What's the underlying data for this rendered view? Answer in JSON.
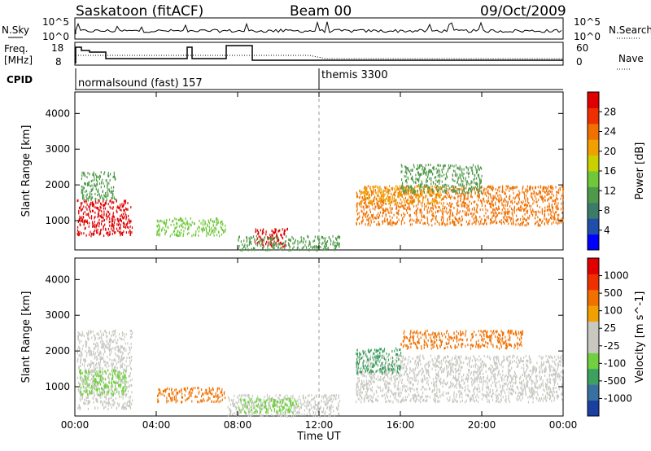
{
  "header": {
    "station": "Saskatoon (fitACF)",
    "beam": "Beam 00",
    "date": "09/Oct/2009"
  },
  "top_panel": {
    "left_label": "N.Sky",
    "left_ticks": [
      "10^5",
      "10^0"
    ],
    "right_ticks": [
      "10^5",
      "10^0"
    ],
    "right_label": "N.Search"
  },
  "freq_panel": {
    "left_label_1": "Freq.",
    "left_label_2": "[MHz]",
    "left_ticks": [
      "18",
      "8"
    ],
    "right_ticks": [
      "60",
      "0"
    ],
    "right_label": "Nave"
  },
  "cpid": {
    "label": "CPID",
    "programs": [
      {
        "name": "normalsound (fast) 157",
        "start_hour": 0
      },
      {
        "name": "themis 3300",
        "start_hour": 12
      }
    ]
  },
  "chart_data": [
    {
      "type": "heatmap",
      "title": "",
      "xlabel": "Time UT",
      "ylabel": "Slant Range [km]",
      "x_ticks": [
        "00:00",
        "04:00",
        "08:00",
        "12:00",
        "16:00",
        "20:00",
        "00:00"
      ],
      "y_ticks": [
        "1000",
        "2000",
        "3000",
        "4000"
      ],
      "xlim_hours": [
        0,
        24
      ],
      "ylim_km": [
        180,
        4600
      ],
      "colorbar": {
        "label": "Power [dB]",
        "ticks": [
          "4",
          "8",
          "12",
          "16",
          "20",
          "24",
          "28"
        ],
        "colors": [
          "#0000ff",
          "#1f4fa8",
          "#3d7a6a",
          "#4f9a4a",
          "#6fc83a",
          "#c8d000",
          "#f0a000",
          "#f07000",
          "#ee3000",
          "#e00000"
        ]
      },
      "scatter_regions": [
        {
          "t": [
            0.1,
            2.8
          ],
          "r": [
            600,
            1600
          ],
          "color": "#e00000"
        },
        {
          "t": [
            0.3,
            2.0
          ],
          "r": [
            1600,
            2400
          ],
          "color": "#4f9a4a"
        },
        {
          "t": [
            4.0,
            7.4
          ],
          "r": [
            600,
            1100
          ],
          "color": "#6fc83a"
        },
        {
          "t": [
            8.8,
            10.5
          ],
          "r": [
            300,
            800
          ],
          "color": "#e00000"
        },
        {
          "t": [
            8.0,
            13.0
          ],
          "r": [
            200,
            600
          ],
          "color": "#4f9a4a"
        },
        {
          "t": [
            13.8,
            24.0
          ],
          "r": [
            900,
            2000
          ],
          "color": "#f07000"
        },
        {
          "t": [
            14.0,
            18.0
          ],
          "r": [
            1500,
            2000
          ],
          "color": "#f0a000"
        },
        {
          "t": [
            16.0,
            20.0
          ],
          "r": [
            1800,
            2600
          ],
          "color": "#4f9a4a"
        }
      ]
    },
    {
      "type": "heatmap",
      "title": "",
      "xlabel": "Time UT",
      "ylabel": "Slant Range [km]",
      "x_ticks": [
        "00:00",
        "04:00",
        "08:00",
        "12:00",
        "16:00",
        "20:00",
        "00:00"
      ],
      "y_ticks": [
        "1000",
        "2000",
        "3000",
        "4000"
      ],
      "xlim_hours": [
        0,
        24
      ],
      "ylim_km": [
        180,
        4600
      ],
      "colorbar": {
        "label": "Velocity [m s^-1]",
        "ticks": [
          "1000",
          "500",
          "100",
          "25",
          "-25",
          "-100",
          "-500",
          "-1000"
        ],
        "colors": [
          "#1a3fa0",
          "#3a70a0",
          "#3da060",
          "#70d040",
          "#c8c8c0",
          "#c8c8c0",
          "#f0a000",
          "#f07000",
          "#ee3000",
          "#e00000"
        ]
      },
      "scatter_regions": [
        {
          "t": [
            0.1,
            2.8
          ],
          "r": [
            400,
            2600
          ],
          "color": "#c8c8c0"
        },
        {
          "t": [
            0.2,
            2.5
          ],
          "r": [
            800,
            1500
          ],
          "color": "#70d040"
        },
        {
          "t": [
            4.0,
            7.4
          ],
          "r": [
            600,
            1000
          ],
          "color": "#f07000"
        },
        {
          "t": [
            7.5,
            13.0
          ],
          "r": [
            200,
            800
          ],
          "color": "#c8c8c0"
        },
        {
          "t": [
            8.0,
            11.0
          ],
          "r": [
            300,
            700
          ],
          "color": "#70d040"
        },
        {
          "t": [
            13.8,
            24.0
          ],
          "r": [
            600,
            1900
          ],
          "color": "#c8c8c0"
        },
        {
          "t": [
            13.8,
            16.0
          ],
          "r": [
            1400,
            2100
          ],
          "color": "#3da060"
        },
        {
          "t": [
            16.0,
            22.0
          ],
          "r": [
            2100,
            2600
          ],
          "color": "#f07000"
        }
      ]
    }
  ]
}
